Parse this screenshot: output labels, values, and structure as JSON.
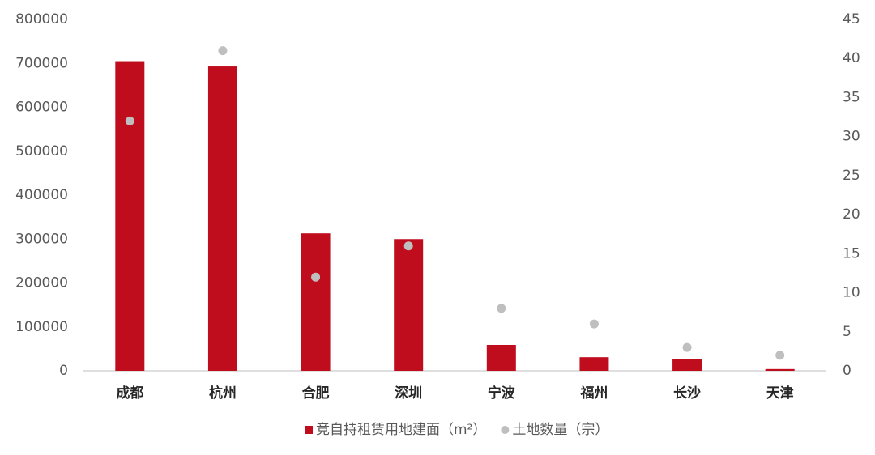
{
  "chart_data": {
    "type": "bar",
    "categories": [
      "成都",
      "杭州",
      "合肥",
      "深圳",
      "宁波",
      "福州",
      "长沙",
      "天津"
    ],
    "series": [
      {
        "name": "竞自持租赁用地建面（m²）",
        "type": "bar",
        "color": "#c00d1e",
        "values": [
          705000,
          693000,
          313000,
          300000,
          59000,
          31000,
          26000,
          4000
        ]
      },
      {
        "name": "土地数量（宗）",
        "type": "scatter",
        "color": "#bfbfbf",
        "axis": "y2",
        "values": [
          32,
          41,
          12,
          16,
          8,
          6,
          3,
          2
        ]
      }
    ],
    "ylim": [
      0,
      800000
    ],
    "yticks": [
      0,
      100000,
      200000,
      300000,
      400000,
      500000,
      600000,
      700000,
      800000
    ],
    "y2lim": [
      0,
      45
    ],
    "y2ticks": [
      0,
      5,
      10,
      15,
      20,
      25,
      30,
      35,
      40,
      45
    ],
    "grid": false,
    "legend": "bottom"
  }
}
